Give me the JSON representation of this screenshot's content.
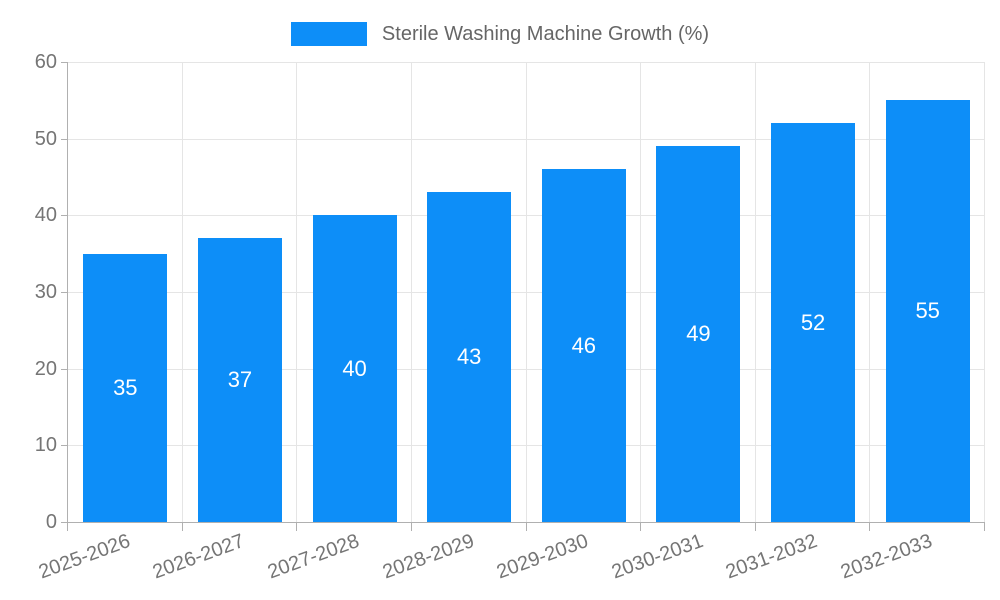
{
  "chart_data": {
    "type": "bar",
    "title": "",
    "legend_label": "Sterile Washing Machine Growth (%)",
    "legend_position": "top-center",
    "categories": [
      "2025-2026",
      "2026-2027",
      "2027-2028",
      "2028-2029",
      "2029-2030",
      "2030-2031",
      "2031-2032",
      "2032-2033"
    ],
    "values": [
      35,
      37,
      40,
      43,
      46,
      49,
      52,
      55
    ],
    "value_labels": [
      "35",
      "37",
      "40",
      "43",
      "46",
      "49",
      "52",
      "55"
    ],
    "xlabel": "",
    "ylabel": "",
    "ylim": [
      0,
      60
    ],
    "yticks": [
      0,
      10,
      20,
      30,
      40,
      50,
      60
    ],
    "ytick_labels": [
      "0",
      "10",
      "20",
      "30",
      "40",
      "50",
      "60"
    ],
    "grid": "on",
    "x_label_rotation_deg": -20,
    "colors": {
      "bar": "#0D8EF8",
      "bar_value_text": "#ffffff",
      "gridline": "#e5e5e5",
      "axis_line": "#b0b0b0",
      "tick_text": "#757575",
      "legend_text": "#666666",
      "background": "#ffffff"
    }
  }
}
